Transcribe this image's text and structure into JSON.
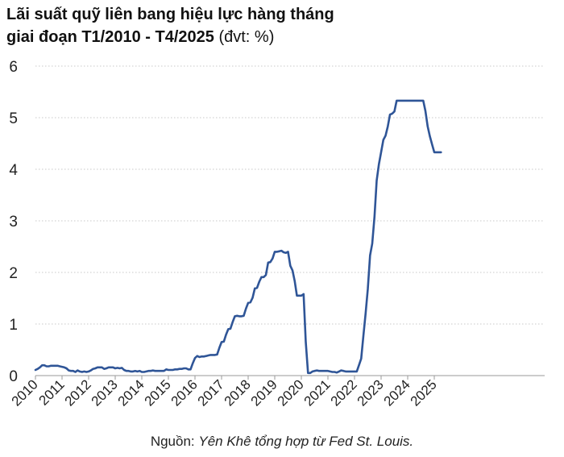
{
  "chart_data": {
    "type": "line",
    "title_line1": "Lãi suất quỹ liên bang hiệu lực hàng tháng",
    "title_line2": "giai đoạn T1/2010 - T4/2025",
    "title_unit": "(đvt: %)",
    "xlabel": "",
    "ylabel": "",
    "ylim": [
      0,
      6
    ],
    "yticks": [
      "0",
      "1",
      "2",
      "3",
      "4",
      "5",
      "6"
    ],
    "xticks": [
      "2010",
      "2011",
      "2012",
      "2013",
      "2014",
      "2015",
      "2016",
      "2017",
      "2018",
      "2019",
      "2020",
      "2021",
      "2022",
      "2023",
      "2024",
      "2025"
    ],
    "grid": "horizontal-dotted",
    "line_color": "#2f5597",
    "series": [
      {
        "x_start": "2010-01",
        "frequency": "monthly",
        "values": [
          0.11,
          0.13,
          0.16,
          0.2,
          0.2,
          0.18,
          0.18,
          0.19,
          0.19,
          0.19,
          0.19,
          0.18,
          0.17,
          0.16,
          0.14,
          0.1,
          0.09,
          0.09,
          0.07,
          0.1,
          0.08,
          0.07,
          0.08,
          0.07,
          0.08,
          0.1,
          0.13,
          0.14,
          0.16,
          0.16,
          0.16,
          0.13,
          0.14,
          0.16,
          0.16,
          0.16,
          0.14,
          0.15,
          0.14,
          0.15,
          0.11,
          0.09,
          0.09,
          0.08,
          0.08,
          0.09,
          0.08,
          0.09,
          0.07,
          0.07,
          0.08,
          0.09,
          0.09,
          0.1,
          0.09,
          0.09,
          0.09,
          0.09,
          0.09,
          0.12,
          0.11,
          0.11,
          0.11,
          0.12,
          0.12,
          0.13,
          0.13,
          0.14,
          0.14,
          0.12,
          0.12,
          0.24,
          0.34,
          0.38,
          0.36,
          0.37,
          0.37,
          0.38,
          0.39,
          0.4,
          0.4,
          0.4,
          0.41,
          0.54,
          0.65,
          0.66,
          0.79,
          0.9,
          0.91,
          1.04,
          1.15,
          1.16,
          1.15,
          1.15,
          1.16,
          1.3,
          1.41,
          1.42,
          1.51,
          1.69,
          1.7,
          1.82,
          1.91,
          1.91,
          1.95,
          2.19,
          2.2,
          2.27,
          2.4,
          2.4,
          2.41,
          2.42,
          2.39,
          2.38,
          2.4,
          2.13,
          2.04,
          1.83,
          1.55,
          1.55,
          1.55,
          1.58,
          0.65,
          0.05,
          0.05,
          0.08,
          0.09,
          0.1,
          0.09,
          0.09,
          0.09,
          0.09,
          0.09,
          0.08,
          0.07,
          0.07,
          0.06,
          0.08,
          0.1,
          0.09,
          0.08,
          0.08,
          0.08,
          0.08,
          0.08,
          0.08,
          0.2,
          0.33,
          0.77,
          1.21,
          1.68,
          2.33,
          2.56,
          3.08,
          3.78,
          4.1,
          4.33,
          4.57,
          4.65,
          4.83,
          5.06,
          5.08,
          5.12,
          5.33,
          5.33,
          5.33,
          5.33,
          5.33,
          5.33,
          5.33,
          5.33,
          5.33,
          5.33,
          5.33,
          5.33,
          5.33,
          5.13,
          4.83,
          4.64,
          4.48,
          4.33,
          4.33,
          4.33,
          4.33
        ]
      }
    ]
  },
  "source": {
    "prefix": "Nguồn: ",
    "text": "Yên Khê tổng hợp từ Fed St. Louis."
  }
}
